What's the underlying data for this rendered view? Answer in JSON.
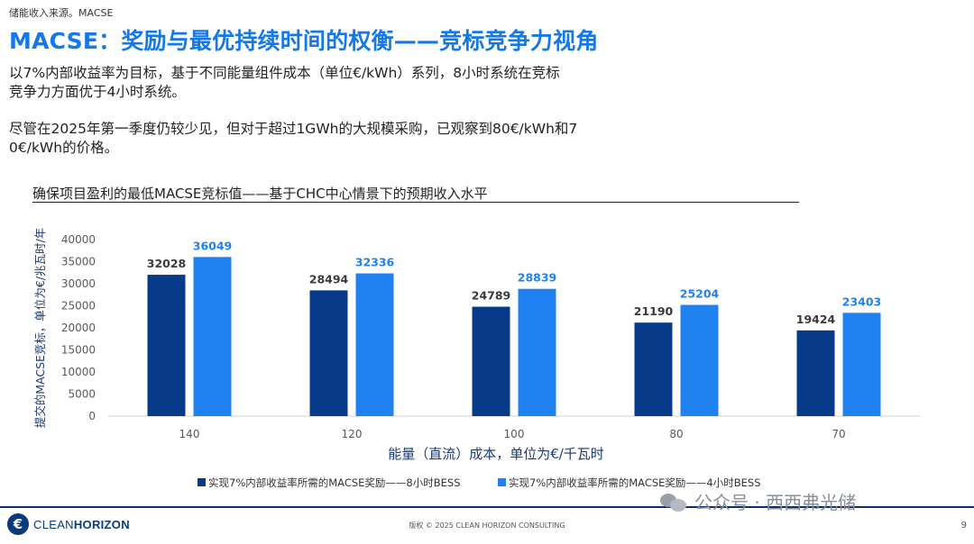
{
  "breadcrumb": "储能收入来源。MACSE",
  "title": "MACSE：奖励与最优持续时间的权衡——竞标竞争力视角",
  "paragraph1_line1": "以7%内部收益率为目标，基于不同能量组件成本（单位€/kWh）系列，8小时系统在竞标",
  "paragraph1_line2": "竞争力方面优于4小时系统。",
  "paragraph2_line1": "尽管在2025年第一季度仍较少见，但对于超过1GWh的大规模采购，已观察到80€/kWh和7",
  "paragraph2_line2": "0€/kWh的价格。",
  "footer": {
    "logo_mark": "€",
    "logo_clean": "CLEAN",
    "logo_horizon": "HORIZON",
    "copyright": "版权 © 2025 CLEAN HORIZON CONSULTING",
    "page_number": "9"
  },
  "watermark": "公众号 · 西西弗光储",
  "chart_data": {
    "type": "bar",
    "title": "确保项目盈利的最低MACSE竞标值——基于CHC中心情景下的预期收入水平",
    "xlabel": "能量（直流）成本，单位为€/千瓦时",
    "ylabel": "提交的MACSE竞标，单位为€/兆瓦时/年",
    "categories": [
      "140",
      "120",
      "100",
      "80",
      "70"
    ],
    "yticks": [
      0,
      5000,
      10000,
      15000,
      20000,
      25000,
      30000,
      35000,
      40000
    ],
    "ylim": [
      0,
      40000
    ],
    "grid": false,
    "legend_position": "bottom",
    "series": [
      {
        "name": "实现7%内部收益率所需的MACSE奖励——8小时BESS",
        "color": "#073b8a",
        "values": [
          32028,
          28494,
          24789,
          21190,
          19424
        ]
      },
      {
        "name": "实现7%内部收益率所需的MACSE奖励——4小时BESS",
        "color": "#1f82f0",
        "values": [
          36049,
          32336,
          28839,
          25204,
          23403
        ]
      }
    ]
  }
}
